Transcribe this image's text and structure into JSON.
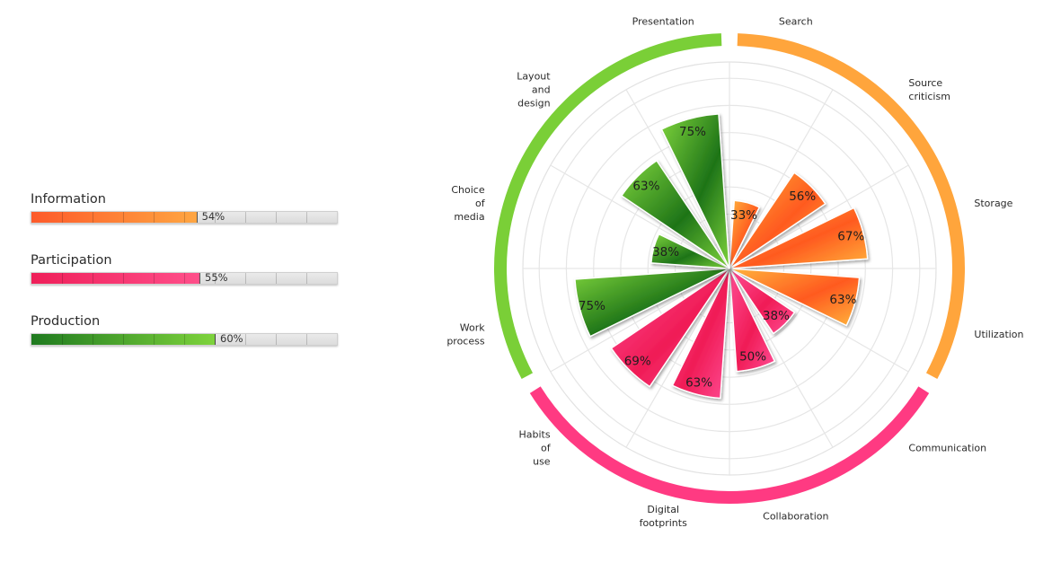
{
  "summary": [
    {
      "label": "Information",
      "value": 54,
      "value_text": "54%",
      "colors": [
        "#fd5a2a",
        "#ffa642"
      ]
    },
    {
      "label": "Participation",
      "value": 55,
      "value_text": "55%",
      "colors": [
        "#ef1f59",
        "#ff4f8a"
      ]
    },
    {
      "label": "Production",
      "value": 60,
      "value_text": "60%",
      "colors": [
        "#1f7a1f",
        "#7ed33c"
      ]
    }
  ],
  "chart_data": {
    "type": "polar-bar",
    "rmax": 100,
    "groups": [
      {
        "name": "Information",
        "color": "#ffa53c",
        "bar_colors": [
          "#ff5a1f",
          "#ffb43c"
        ]
      },
      {
        "name": "Participation",
        "color": "#ff3a82",
        "bar_colors": [
          "#f01c56",
          "#ff4d95"
        ]
      },
      {
        "name": "Production",
        "color": "#7acf37",
        "bar_colors": [
          "#1e7418",
          "#7ed33c"
        ]
      }
    ],
    "categories": [
      {
        "label": "Search",
        "group": 0,
        "value": 33,
        "value_text": "33%"
      },
      {
        "label": "Source criticism",
        "group": 0,
        "value": 56,
        "value_text": "56%"
      },
      {
        "label": "Storage",
        "group": 0,
        "value": 67,
        "value_text": "67%"
      },
      {
        "label": "Utilization",
        "group": 0,
        "value": 63,
        "value_text": "63%"
      },
      {
        "label": "Communication",
        "group": 1,
        "value": 38,
        "value_text": "38%"
      },
      {
        "label": "Collaboration",
        "group": 1,
        "value": 50,
        "value_text": "50%"
      },
      {
        "label": "Digital footprints",
        "group": 1,
        "value": 63,
        "value_text": "63%"
      },
      {
        "label": "Habits of use",
        "group": 1,
        "value": 69,
        "value_text": "69%"
      },
      {
        "label": "Work process",
        "group": 2,
        "value": 75,
        "value_text": "75%"
      },
      {
        "label": "Choice of media",
        "group": 2,
        "value": 38,
        "value_text": "38%"
      },
      {
        "label": "Layout and design",
        "group": 2,
        "value": 63,
        "value_text": "63%"
      },
      {
        "label": "Presentation",
        "group": 2,
        "value": 75,
        "value_text": "75%"
      }
    ]
  }
}
